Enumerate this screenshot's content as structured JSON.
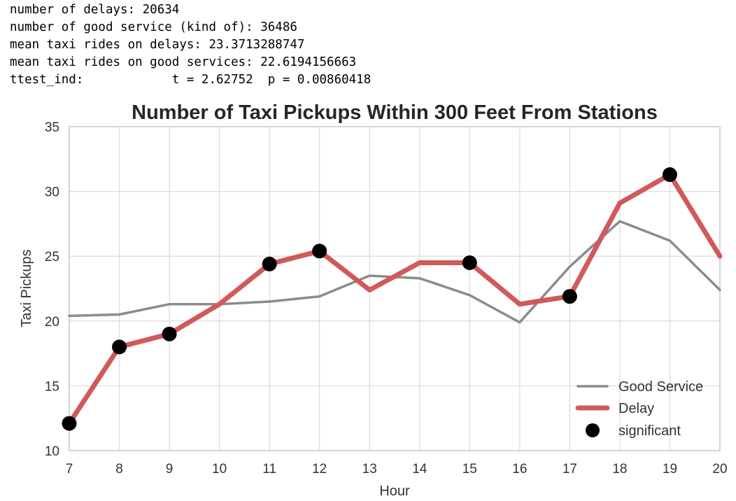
{
  "console_lines": [
    "number of delays: 20634",
    "number of good service (kind of): 36486",
    "mean taxi rides on delays: 23.3713288747",
    "mean taxi rides on good services: 22.6194156663",
    "ttest_ind:            t = 2.62752  p = 0.00860418"
  ],
  "chart_data": {
    "type": "line",
    "title": "Number of Taxi Pickups Within 300 Feet From Stations",
    "xlabel": "Hour",
    "ylabel": "Taxi Pickups",
    "x": [
      7,
      8,
      9,
      10,
      11,
      12,
      13,
      14,
      15,
      16,
      17,
      18,
      19,
      20
    ],
    "xlim": [
      7,
      20
    ],
    "ylim": [
      10,
      35
    ],
    "yticks": [
      10,
      15,
      20,
      25,
      30,
      35
    ],
    "grid": true,
    "legend_position": "lower-right",
    "series": [
      {
        "name": "Good Service",
        "color": "#8c8c8c",
        "values": [
          20.4,
          20.5,
          21.3,
          21.3,
          21.5,
          21.9,
          23.5,
          23.3,
          22.0,
          19.9,
          24.2,
          27.7,
          26.2,
          22.4
        ]
      },
      {
        "name": "Delay",
        "color": "#d05a5a",
        "values": [
          12.1,
          18.0,
          19.0,
          21.3,
          24.4,
          25.4,
          22.4,
          24.5,
          24.5,
          21.3,
          21.9,
          29.1,
          31.3,
          25.0
        ]
      }
    ],
    "significant": {
      "name": "significant",
      "color": "#000000",
      "x": [
        7,
        8,
        9,
        11,
        12,
        15,
        17,
        19
      ],
      "y": [
        12.1,
        18.0,
        19.0,
        24.4,
        25.4,
        24.5,
        21.9,
        31.3
      ]
    }
  }
}
